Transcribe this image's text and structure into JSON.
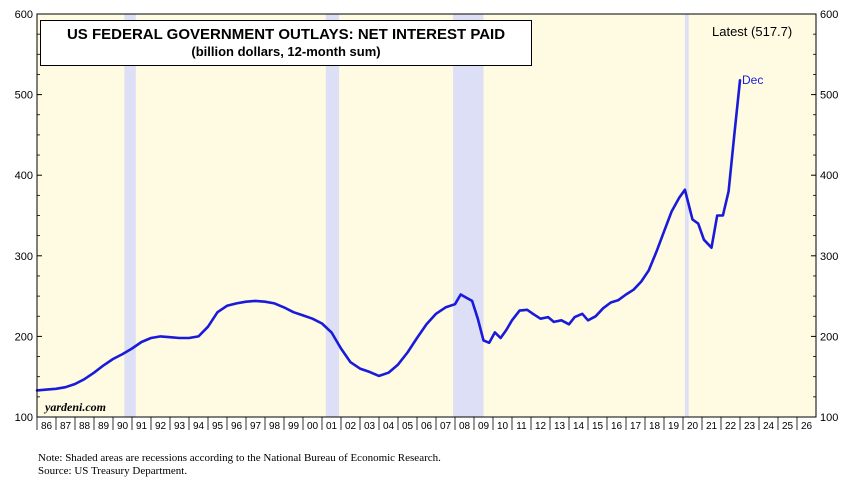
{
  "chart_data": {
    "type": "line",
    "title": "US FEDERAL GOVERNMENT OUTLAYS: NET INTEREST PAID",
    "subtitle": "(billion dollars, 12-month sum)",
    "latest_label": "Latest (517.7)",
    "end_label": "Dec",
    "watermark": "yardeni.com",
    "ylim": [
      100,
      600
    ],
    "yticks": [
      100,
      200,
      300,
      400,
      500,
      600
    ],
    "xlim": [
      1986,
      2027
    ],
    "x_tick_labels": [
      "86",
      "87",
      "88",
      "89",
      "90",
      "91",
      "92",
      "93",
      "94",
      "95",
      "96",
      "97",
      "98",
      "99",
      "00",
      "01",
      "02",
      "03",
      "04",
      "05",
      "06",
      "07",
      "08",
      "09",
      "10",
      "11",
      "12",
      "13",
      "14",
      "15",
      "16",
      "17",
      "18",
      "19",
      "20",
      "21",
      "22",
      "23",
      "24",
      "25",
      "26"
    ],
    "recessions": [
      [
        1990.6,
        1991.2
      ],
      [
        2001.2,
        2001.9
      ],
      [
        2007.9,
        2009.5
      ],
      [
        2020.1,
        2020.3
      ]
    ],
    "series": [
      {
        "color": "#1a1adb",
        "x": [
          1986.0,
          1986.5,
          1987.0,
          1987.5,
          1988.0,
          1988.5,
          1989.0,
          1989.5,
          1990.0,
          1990.5,
          1991.0,
          1991.5,
          1992.0,
          1992.5,
          1993.0,
          1993.5,
          1994.0,
          1994.5,
          1995.0,
          1995.5,
          1996.0,
          1996.5,
          1997.0,
          1997.5,
          1998.0,
          1998.5,
          1999.0,
          1999.5,
          2000.0,
          2000.5,
          2001.0,
          2001.5,
          2002.0,
          2002.5,
          2003.0,
          2003.5,
          2004.0,
          2004.5,
          2005.0,
          2005.5,
          2006.0,
          2006.5,
          2007.0,
          2007.5,
          2008.0,
          2008.3,
          2008.6,
          2008.9,
          2009.2,
          2009.5,
          2009.8,
          2010.1,
          2010.4,
          2010.7,
          2011.0,
          2011.4,
          2011.8,
          2012.1,
          2012.5,
          2012.9,
          2013.2,
          2013.6,
          2014.0,
          2014.3,
          2014.7,
          2015.0,
          2015.4,
          2015.8,
          2016.2,
          2016.6,
          2017.0,
          2017.4,
          2017.8,
          2018.2,
          2018.6,
          2019.0,
          2019.4,
          2019.8,
          2020.1,
          2020.5,
          2020.8,
          2021.1,
          2021.5,
          2021.8,
          2022.1,
          2022.4,
          2022.7,
          2023.0
        ],
        "y": [
          133,
          134,
          135,
          137,
          141,
          147,
          155,
          164,
          172,
          178,
          185,
          193,
          198,
          200,
          199,
          198,
          198,
          200,
          212,
          230,
          238,
          241,
          243,
          244,
          243,
          241,
          236,
          230,
          226,
          222,
          216,
          205,
          185,
          168,
          160,
          156,
          151,
          155,
          165,
          180,
          198,
          215,
          228,
          236,
          240,
          252,
          248,
          244,
          222,
          195,
          192,
          205,
          198,
          208,
          220,
          232,
          233,
          228,
          222,
          224,
          218,
          220,
          215,
          224,
          228,
          220,
          225,
          235,
          242,
          245,
          252,
          258,
          268,
          282,
          305,
          330,
          355,
          372,
          382,
          345,
          340,
          320,
          310,
          350,
          350,
          380,
          450,
          517.7
        ]
      }
    ]
  },
  "footnotes": {
    "note": "Note: Shaded areas are recessions according to the National Bureau of Economic Research.",
    "source": "Source: US Treasury Department."
  }
}
